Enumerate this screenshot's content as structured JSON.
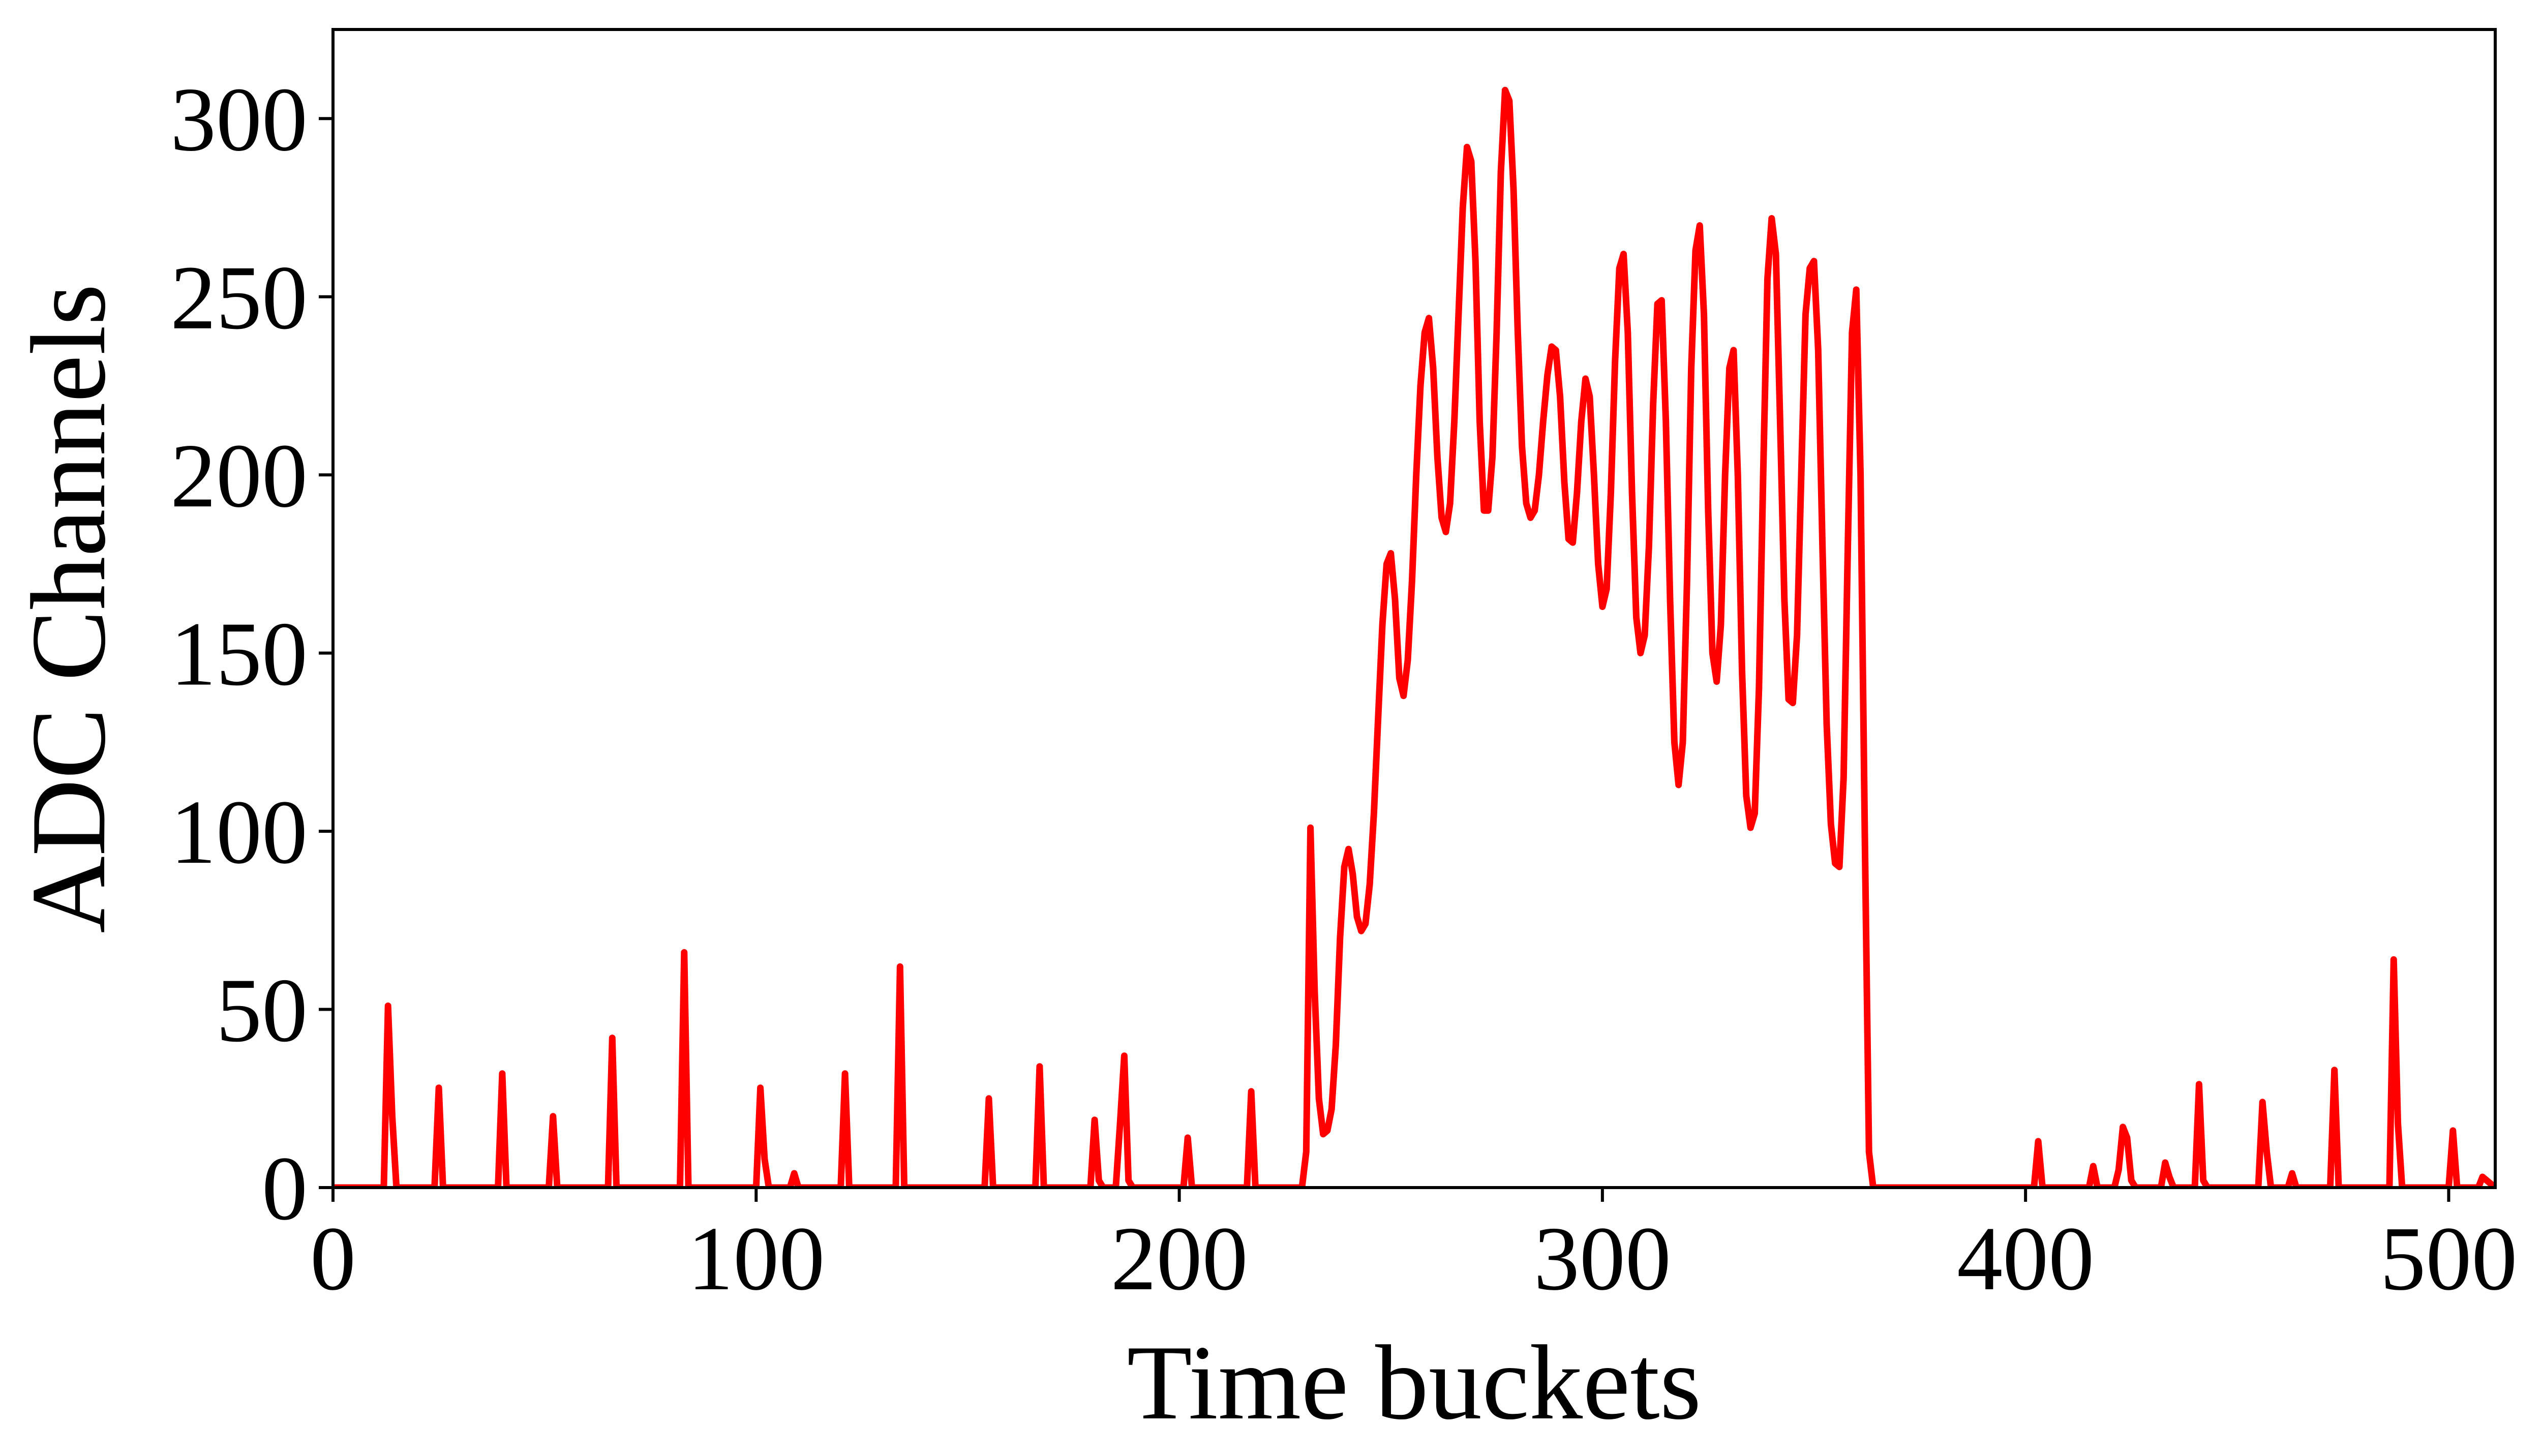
{
  "chart_data": {
    "type": "line",
    "title": "",
    "xlabel": "Time buckets",
    "ylabel": "ADC Channels",
    "xlim": [
      0,
      511
    ],
    "ylim": [
      0,
      325
    ],
    "xticks": [
      0,
      100,
      200,
      300,
      400,
      500
    ],
    "yticks": [
      0,
      50,
      100,
      150,
      200,
      250,
      300
    ],
    "grid": false,
    "legend": "none",
    "series": [
      {
        "color": "#ff0000",
        "points": [
          [
            0,
            0
          ],
          [
            12,
            0
          ],
          [
            13,
            51
          ],
          [
            14,
            20
          ],
          [
            15,
            0
          ],
          [
            24,
            0
          ],
          [
            25,
            28
          ],
          [
            26,
            0
          ],
          [
            39,
            0
          ],
          [
            40,
            32
          ],
          [
            41,
            0
          ],
          [
            51,
            0
          ],
          [
            52,
            20
          ],
          [
            53,
            0
          ],
          [
            65,
            0
          ],
          [
            66,
            42
          ],
          [
            67,
            0
          ],
          [
            82,
            0
          ],
          [
            83,
            66
          ],
          [
            84,
            0
          ],
          [
            100,
            0
          ],
          [
            101,
            28
          ],
          [
            102,
            8
          ],
          [
            103,
            0
          ],
          [
            108,
            0
          ],
          [
            109,
            4
          ],
          [
            110,
            0
          ],
          [
            120,
            0
          ],
          [
            121,
            32
          ],
          [
            122,
            0
          ],
          [
            133,
            0
          ],
          [
            134,
            62
          ],
          [
            135,
            0
          ],
          [
            154,
            0
          ],
          [
            155,
            25
          ],
          [
            156,
            0
          ],
          [
            166,
            0
          ],
          [
            167,
            34
          ],
          [
            168,
            0
          ],
          [
            179,
            0
          ],
          [
            180,
            19
          ],
          [
            181,
            2
          ],
          [
            182,
            0
          ],
          [
            185,
            0
          ],
          [
            186,
            18
          ],
          [
            187,
            37
          ],
          [
            188,
            2
          ],
          [
            189,
            0
          ],
          [
            201,
            0
          ],
          [
            202,
            14
          ],
          [
            203,
            0
          ],
          [
            216,
            0
          ],
          [
            217,
            27
          ],
          [
            218,
            0
          ],
          [
            229,
            0
          ],
          [
            230,
            10
          ],
          [
            231,
            101
          ],
          [
            232,
            55
          ],
          [
            233,
            25
          ],
          [
            234,
            15
          ],
          [
            235,
            16
          ],
          [
            236,
            22
          ],
          [
            237,
            40
          ],
          [
            238,
            70
          ],
          [
            239,
            90
          ],
          [
            240,
            95
          ],
          [
            241,
            88
          ],
          [
            242,
            76
          ],
          [
            243,
            72
          ],
          [
            244,
            74
          ],
          [
            245,
            85
          ],
          [
            246,
            105
          ],
          [
            247,
            132
          ],
          [
            248,
            158
          ],
          [
            249,
            175
          ],
          [
            250,
            178
          ],
          [
            251,
            165
          ],
          [
            252,
            143
          ],
          [
            253,
            138
          ],
          [
            254,
            148
          ],
          [
            255,
            170
          ],
          [
            256,
            200
          ],
          [
            257,
            225
          ],
          [
            258,
            240
          ],
          [
            259,
            244
          ],
          [
            260,
            230
          ],
          [
            261,
            205
          ],
          [
            262,
            188
          ],
          [
            263,
            184
          ],
          [
            264,
            192
          ],
          [
            265,
            215
          ],
          [
            266,
            245
          ],
          [
            267,
            275
          ],
          [
            268,
            292
          ],
          [
            269,
            288
          ],
          [
            270,
            260
          ],
          [
            271,
            215
          ],
          [
            272,
            190
          ],
          [
            273,
            190
          ],
          [
            274,
            205
          ],
          [
            275,
            240
          ],
          [
            276,
            285
          ],
          [
            277,
            308
          ],
          [
            278,
            305
          ],
          [
            279,
            280
          ],
          [
            280,
            240
          ],
          [
            281,
            208
          ],
          [
            282,
            192
          ],
          [
            283,
            188
          ],
          [
            284,
            190
          ],
          [
            285,
            200
          ],
          [
            286,
            215
          ],
          [
            287,
            228
          ],
          [
            288,
            236
          ],
          [
            289,
            235
          ],
          [
            290,
            222
          ],
          [
            291,
            198
          ],
          [
            292,
            182
          ],
          [
            293,
            181
          ],
          [
            294,
            195
          ],
          [
            295,
            215
          ],
          [
            296,
            227
          ],
          [
            297,
            222
          ],
          [
            298,
            200
          ],
          [
            299,
            175
          ],
          [
            300,
            163
          ],
          [
            301,
            168
          ],
          [
            302,
            195
          ],
          [
            303,
            232
          ],
          [
            304,
            258
          ],
          [
            305,
            262
          ],
          [
            306,
            240
          ],
          [
            307,
            195
          ],
          [
            308,
            160
          ],
          [
            309,
            150
          ],
          [
            310,
            155
          ],
          [
            311,
            180
          ],
          [
            312,
            220
          ],
          [
            313,
            248
          ],
          [
            314,
            249
          ],
          [
            315,
            215
          ],
          [
            316,
            165
          ],
          [
            317,
            125
          ],
          [
            318,
            113
          ],
          [
            319,
            125
          ],
          [
            320,
            170
          ],
          [
            321,
            230
          ],
          [
            322,
            263
          ],
          [
            323,
            270
          ],
          [
            324,
            245
          ],
          [
            325,
            190
          ],
          [
            326,
            150
          ],
          [
            327,
            142
          ],
          [
            328,
            158
          ],
          [
            329,
            200
          ],
          [
            330,
            230
          ],
          [
            331,
            235
          ],
          [
            332,
            200
          ],
          [
            333,
            145
          ],
          [
            334,
            110
          ],
          [
            335,
            101
          ],
          [
            336,
            105
          ],
          [
            337,
            140
          ],
          [
            338,
            200
          ],
          [
            339,
            255
          ],
          [
            340,
            272
          ],
          [
            341,
            262
          ],
          [
            342,
            215
          ],
          [
            343,
            165
          ],
          [
            344,
            137
          ],
          [
            345,
            136
          ],
          [
            346,
            155
          ],
          [
            347,
            200
          ],
          [
            348,
            245
          ],
          [
            349,
            258
          ],
          [
            350,
            260
          ],
          [
            351,
            235
          ],
          [
            352,
            180
          ],
          [
            353,
            130
          ],
          [
            354,
            102
          ],
          [
            355,
            91
          ],
          [
            356,
            90
          ],
          [
            357,
            115
          ],
          [
            358,
            180
          ],
          [
            359,
            240
          ],
          [
            360,
            252
          ],
          [
            361,
            200
          ],
          [
            362,
            100
          ],
          [
            363,
            10
          ],
          [
            364,
            0
          ],
          [
            402,
            0
          ],
          [
            403,
            13
          ],
          [
            404,
            0
          ],
          [
            415,
            0
          ],
          [
            416,
            6
          ],
          [
            417,
            0
          ],
          [
            421,
            0
          ],
          [
            422,
            5
          ],
          [
            423,
            17
          ],
          [
            424,
            14
          ],
          [
            425,
            2
          ],
          [
            426,
            0
          ],
          [
            432,
            0
          ],
          [
            433,
            7
          ],
          [
            434,
            3
          ],
          [
            435,
            0
          ],
          [
            440,
            0
          ],
          [
            441,
            29
          ],
          [
            442,
            2
          ],
          [
            443,
            0
          ],
          [
            455,
            0
          ],
          [
            456,
            24
          ],
          [
            457,
            10
          ],
          [
            458,
            0
          ],
          [
            462,
            0
          ],
          [
            463,
            4
          ],
          [
            464,
            0
          ],
          [
            472,
            0
          ],
          [
            473,
            33
          ],
          [
            474,
            0
          ],
          [
            486,
            0
          ],
          [
            487,
            64
          ],
          [
            488,
            18
          ],
          [
            489,
            0
          ],
          [
            500,
            0
          ],
          [
            501,
            16
          ],
          [
            502,
            0
          ],
          [
            507,
            0
          ],
          [
            508,
            3
          ],
          [
            511,
            0
          ]
        ]
      }
    ]
  }
}
